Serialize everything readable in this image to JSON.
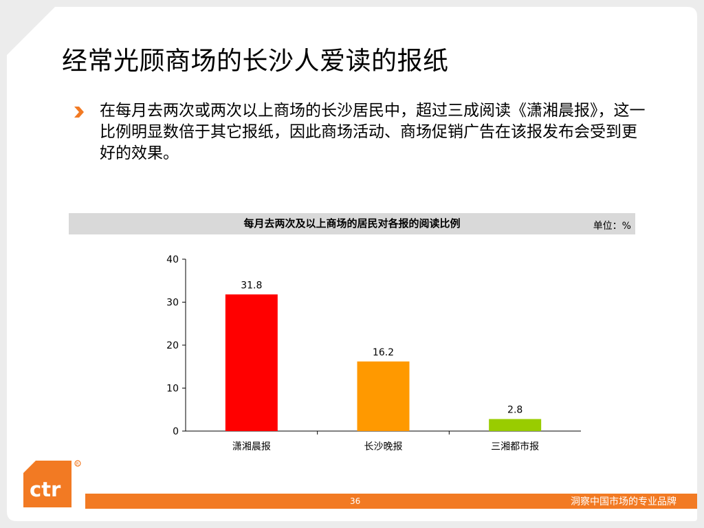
{
  "slide": {
    "title": "经常光顾商场的长沙人爱读的报纸",
    "bullet": "在每月去两次或两次以上商场的长沙居民中，超过三成阅读《潇湘晨报》，这一比例明显数倍于其它报纸，因此商场活动、商场促销广告在该报发布会受到更好的效果。",
    "page_number": "36",
    "slogan": "洞察中国市场的专业品牌",
    "logo_text": "ctr"
  },
  "colors": {
    "accent_orange": "#f27a23",
    "header_gray": "#d9d9d9"
  },
  "chart_data": {
    "type": "bar",
    "title": "每月去两次及以上商场的居民对各报的阅读比例",
    "unit": "单位：%",
    "categories": [
      "潇湘晨报",
      "长沙晚报",
      "三湘都市报"
    ],
    "values": [
      31.8,
      16.2,
      2.8
    ],
    "value_labels": [
      "31.8",
      "16.2",
      "2.8"
    ],
    "bar_colors": [
      "#ff0000",
      "#ff9900",
      "#99cc00"
    ],
    "ylim": [
      0,
      40
    ],
    "yticks": [
      0,
      10,
      20,
      30,
      40
    ],
    "grid": false,
    "legend": "none"
  }
}
